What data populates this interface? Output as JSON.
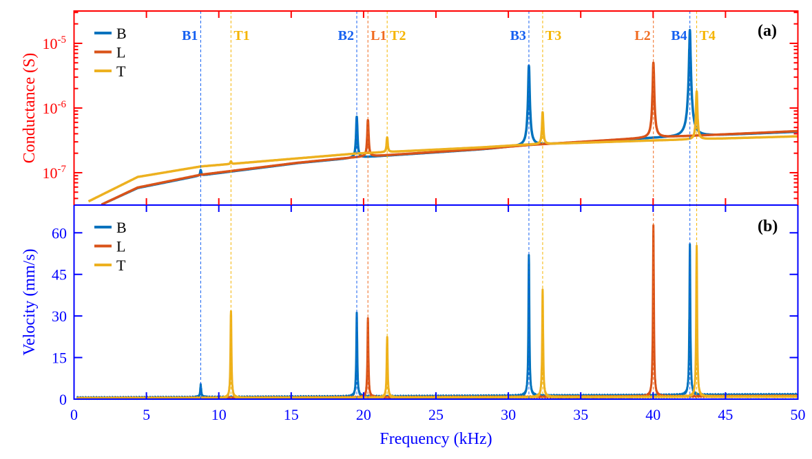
{
  "chart_data": [
    {
      "type": "line",
      "panel_label": "(a)",
      "ylabel": "Conductance (S)",
      "yscale": "log",
      "ylim": [
        3.16e-08,
        3.16e-05
      ],
      "yticks": [
        1e-07,
        1e-06,
        1e-05
      ],
      "ytick_labels": [
        {
          "base": "10",
          "exp": "-7"
        },
        {
          "base": "10",
          "exp": "-6"
        },
        {
          "base": "10",
          "exp": "-5"
        }
      ],
      "xlim": [
        0,
        50
      ],
      "axis_color": "#ff0000",
      "legend": "top-left",
      "series": [
        {
          "name": "B",
          "color": "#0072BD",
          "baseline_f": [
            1.88,
            4.4,
            8.75,
            15.5,
            19.5,
            28.2,
            31.4,
            40,
            50
          ],
          "baseline_g": [
            3.2e-08,
            5.8e-08,
            9.1e-08,
            1.41e-07,
            1.71e-07,
            2.3e-07,
            2.66e-07,
            3.45e-07,
            4.3e-07
          ],
          "peaks_f": [
            8.75,
            19.53,
            31.42,
            42.54
          ],
          "peaks_g": [
            1.1e-07,
            7.3e-07,
            4.5e-06,
            1.6e-05
          ]
        },
        {
          "name": "L",
          "color": "#D95319",
          "baseline_f": [
            1.88,
            4.4,
            8.75,
            15.5,
            19.5,
            28.2,
            31.4,
            40,
            50
          ],
          "baseline_g": [
            3.2e-08,
            5.9e-08,
            9.3e-08,
            1.43e-07,
            1.74e-07,
            2.33e-07,
            2.68e-07,
            3.5e-07,
            4.4e-07
          ],
          "peaks_f": [
            20.3,
            40.02
          ],
          "peaks_g": [
            6.5e-07,
            5e-06
          ]
        },
        {
          "name": "T",
          "color": "#EDB120",
          "baseline_f": [
            1.0,
            4.4,
            8.75,
            15.5,
            19.5,
            28.2,
            31.4,
            40,
            50
          ],
          "baseline_g": [
            3.6e-08,
            8.6e-08,
            1.25e-07,
            1.67e-07,
            1.98e-07,
            2.47e-07,
            2.73e-07,
            3.15e-07,
            3.65e-07
          ],
          "peaks_f": [
            10.84,
            21.63,
            32.37,
            43.01
          ],
          "peaks_g": [
            1.5e-07,
            3.5e-07,
            8.6e-07,
            1.8e-06
          ]
        }
      ]
    },
    {
      "type": "line",
      "panel_label": "(b)",
      "ylabel": "Velocity (mm/s)",
      "xlabel": "Frequency (kHz)",
      "ylim": [
        0,
        70
      ],
      "yticks": [
        0,
        15,
        30,
        45,
        60
      ],
      "xlim": [
        0,
        50
      ],
      "xticks": [
        0,
        5,
        10,
        15,
        20,
        25,
        30,
        35,
        40,
        45,
        50
      ],
      "axis_color": "#0000ff",
      "legend": "top-left",
      "series": [
        {
          "name": "B",
          "color": "#0072BD",
          "baseline": 1.2,
          "peaks_f": [
            8.75,
            19.53,
            31.42,
            42.54
          ],
          "peaks_v": [
            4.5,
            30,
            50.5,
            54.5
          ]
        },
        {
          "name": "L",
          "color": "#D95319",
          "baseline": 0.8,
          "peaks_f": [
            20.3,
            40.02
          ],
          "peaks_v": [
            28.5,
            61.5
          ]
        },
        {
          "name": "T",
          "color": "#EDB120",
          "baseline": 0.7,
          "peaks_f": [
            10.84,
            21.63,
            32.37,
            43.01
          ],
          "peaks_v": [
            31.5,
            22,
            39,
            54.5
          ]
        }
      ]
    }
  ],
  "mode_markers": [
    {
      "label": "B1",
      "f": 8.75,
      "color": "#1560f0"
    },
    {
      "label": "T1",
      "f": 10.84,
      "color": "#f5b400"
    },
    {
      "label": "B2",
      "f": 19.53,
      "color": "#1560f0"
    },
    {
      "label": "L1",
      "f": 20.3,
      "color": "#f06a1e"
    },
    {
      "label": "T2",
      "f": 21.63,
      "color": "#f5b400"
    },
    {
      "label": "B3",
      "f": 31.42,
      "color": "#1560f0"
    },
    {
      "label": "T3",
      "f": 32.37,
      "color": "#f5b400"
    },
    {
      "label": "L2",
      "f": 40.02,
      "color": "#f06a1e"
    },
    {
      "label": "B4",
      "f": 42.54,
      "color": "#1560f0"
    },
    {
      "label": "T4",
      "f": 43.01,
      "color": "#f5b400"
    }
  ]
}
